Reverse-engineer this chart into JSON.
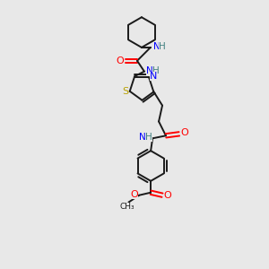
{
  "background_color": "#e8e8e8",
  "bond_color": "#1a1a1a",
  "N_color": "#0000ff",
  "O_color": "#ff0000",
  "S_color": "#b8a000",
  "NH_color": "#408080",
  "figsize": [
    3.0,
    3.0
  ],
  "dpi": 100,
  "xlim": [
    0,
    300
  ],
  "ylim": [
    0,
    300
  ]
}
